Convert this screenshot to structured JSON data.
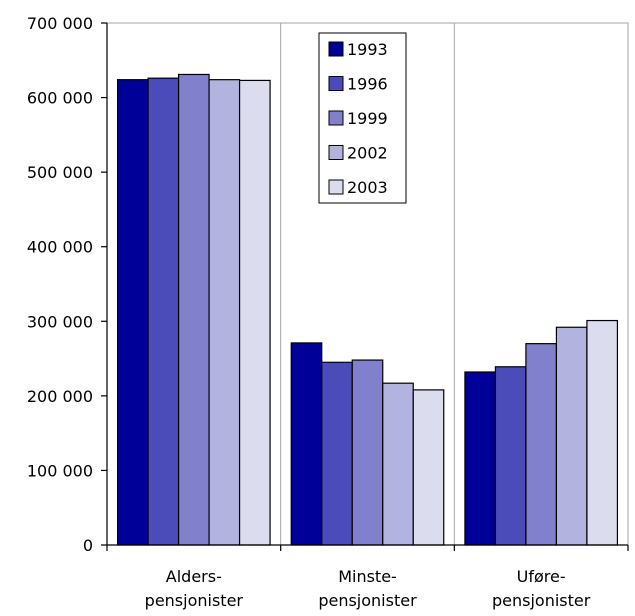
{
  "chart_data": {
    "type": "bar",
    "categories": [
      "Alders-\npensjonister",
      "Minste-\npensjonister",
      "Uføre-\npensjonister"
    ],
    "series": [
      {
        "name": "1993",
        "values": [
          624000,
          271000,
          232000
        ],
        "color": "#000099"
      },
      {
        "name": "1996",
        "values": [
          626000,
          245000,
          239000
        ],
        "color": "#4b4bb9"
      },
      {
        "name": "1999",
        "values": [
          631000,
          248000,
          270000
        ],
        "color": "#8080cc"
      },
      {
        "name": "2002",
        "values": [
          624000,
          217000,
          292000
        ],
        "color": "#b3b3e0"
      },
      {
        "name": "2003",
        "values": [
          623000,
          208000,
          301000
        ],
        "color": "#dcdcef"
      }
    ],
    "ylim": [
      0,
      700000
    ],
    "yticks": [
      0,
      100000,
      200000,
      300000,
      400000,
      500000,
      600000,
      700000
    ],
    "ytick_labels": [
      "0",
      "100 000",
      "200 000",
      "300 000",
      "400 000",
      "500 000",
      "600 000",
      "700 000"
    ],
    "title": "",
    "xlabel": "",
    "ylabel": "",
    "grid": "vertical category separators",
    "legend_position": "top-center inside plot"
  }
}
